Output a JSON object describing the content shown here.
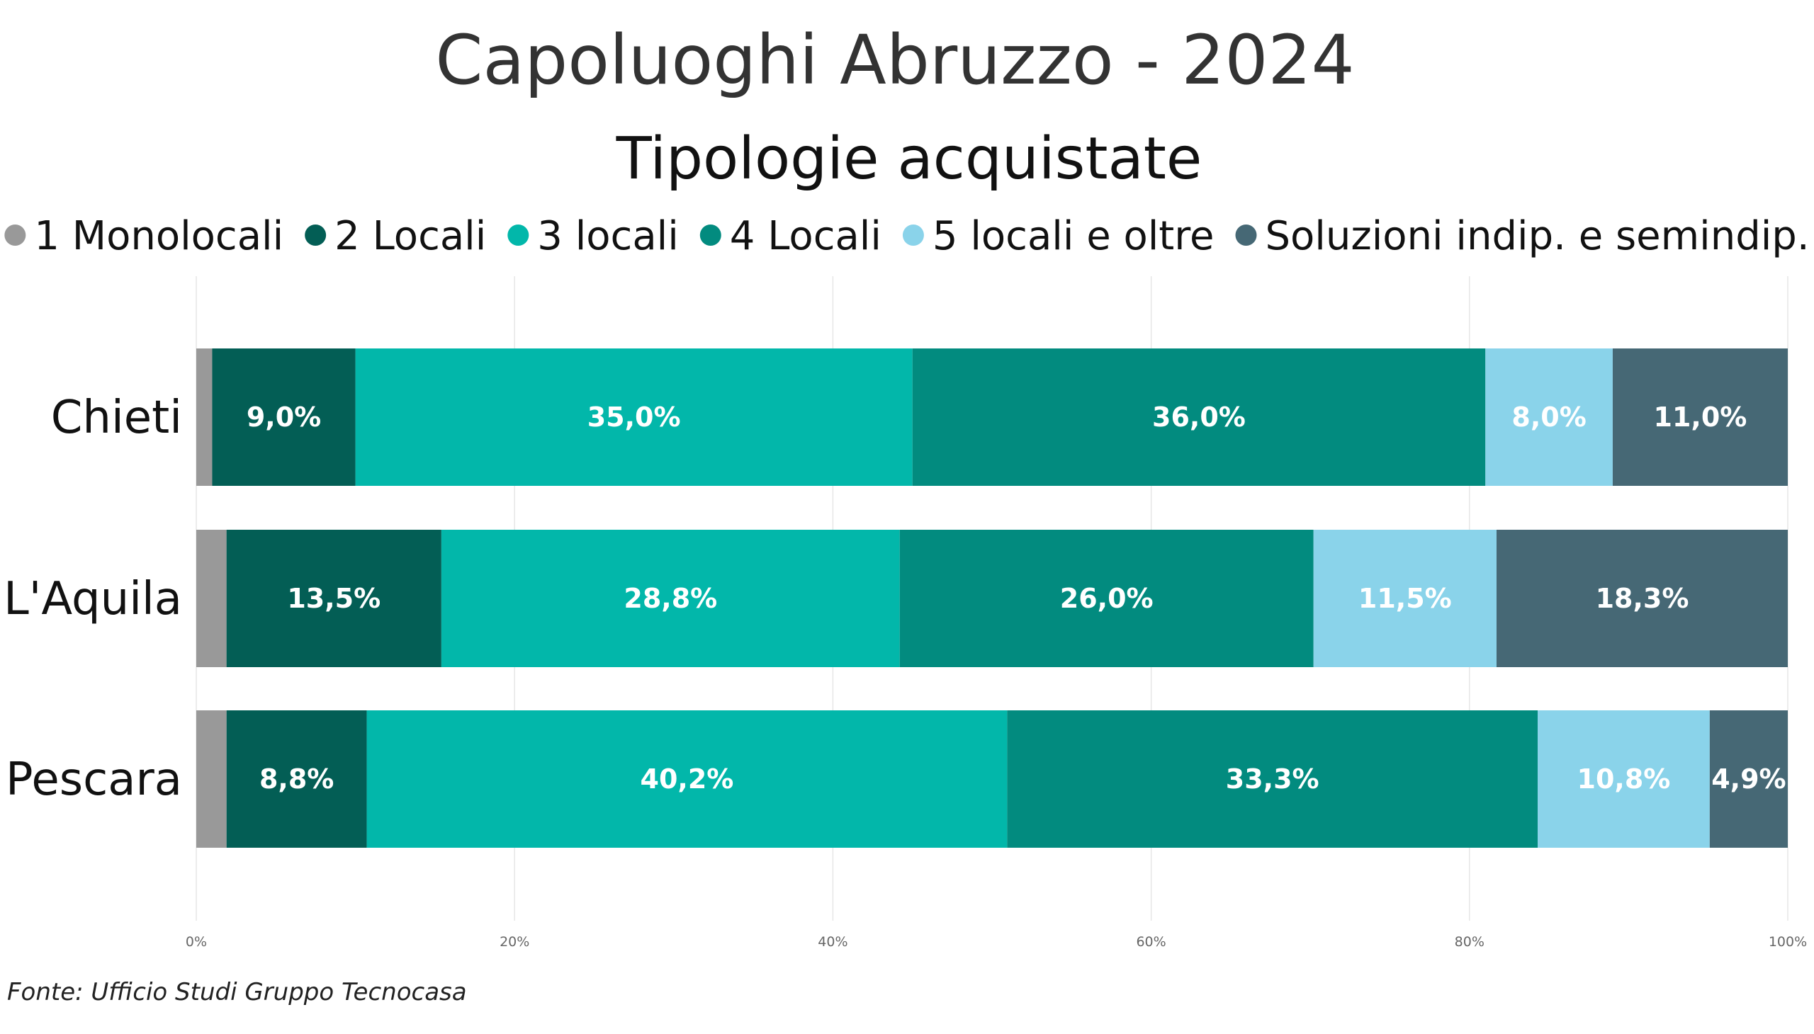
{
  "chart_data": {
    "type": "bar",
    "orientation": "horizontal",
    "stacked": true,
    "title": "Capoluoghi Abruzzo - 2024",
    "subtitle": "Tipologie acquistate",
    "source": "Fonte: Ufficio Studi Gruppo Tecnocasa",
    "categories": [
      "Chieti",
      "L'Aquila",
      "Pescara"
    ],
    "xlim": [
      0,
      100
    ],
    "x_ticks": [
      "0%",
      "20%",
      "40%",
      "60%",
      "80%",
      "100%"
    ],
    "grid": true,
    "legend_position": "top",
    "series": [
      {
        "name": "1 Monolocali",
        "color": "#999999",
        "values": [
          1.0,
          1.9,
          1.9
        ],
        "labels": [
          "",
          "",
          ""
        ]
      },
      {
        "name": "2 Locali",
        "color": "#035e55",
        "values": [
          9.0,
          13.5,
          8.8
        ],
        "labels": [
          "9,0%",
          "13,5%",
          "8,8%"
        ]
      },
      {
        "name": "3 locali",
        "color": "#02b7aa",
        "values": [
          35.0,
          28.8,
          40.2
        ],
        "labels": [
          "35,0%",
          "28,8%",
          "40,2%"
        ]
      },
      {
        "name": "4 Locali",
        "color": "#028b7f",
        "values": [
          36.0,
          26.0,
          33.3
        ],
        "labels": [
          "36,0%",
          "26,0%",
          "33,3%"
        ]
      },
      {
        "name": "5 locali e oltre",
        "color": "#8ad3ea",
        "values": [
          8.0,
          11.5,
          10.8
        ],
        "labels": [
          "8,0%",
          "11,5%",
          "10,8%"
        ]
      },
      {
        "name": "Soluzioni indip. e semindip.",
        "color": "#466875",
        "values": [
          11.0,
          18.3,
          4.9
        ],
        "labels": [
          "11,0%",
          "18,3%",
          "4,9%"
        ]
      }
    ]
  }
}
